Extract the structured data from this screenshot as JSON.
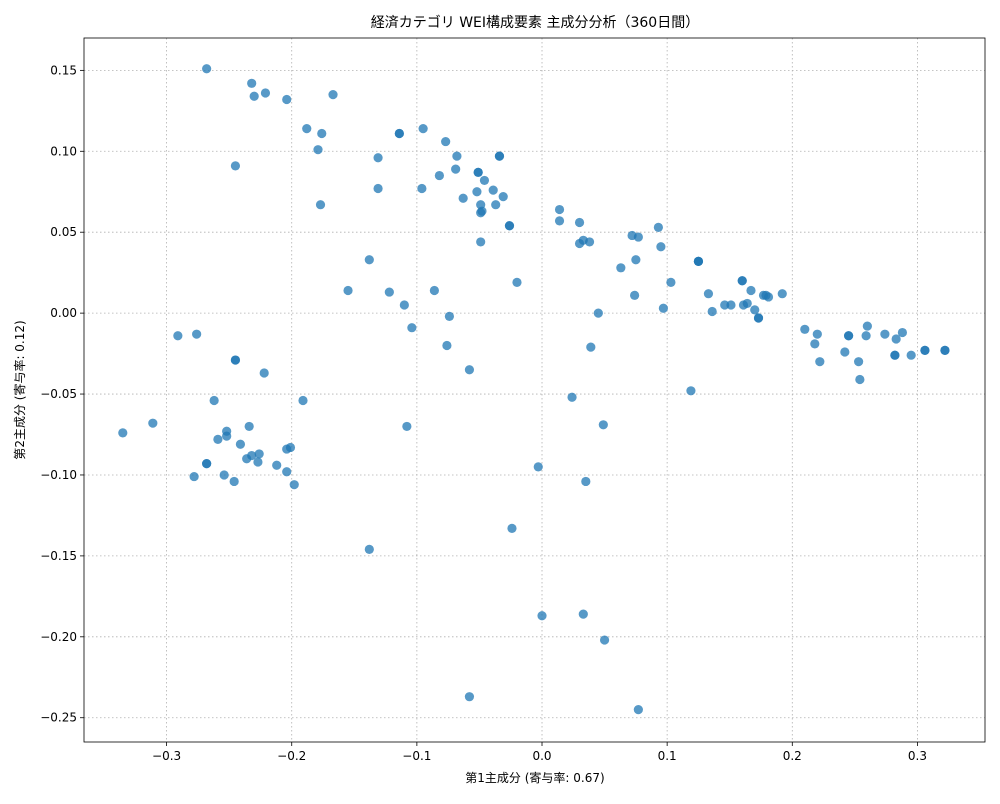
{
  "chart_data": {
    "type": "scatter",
    "title": "経済カテゴリ WEI構成要素 主成分分析（360日間）",
    "xlabel": "第1主成分 (寄与率: 0.67)",
    "ylabel": "第2主成分 (寄与率: 0.12)",
    "xlim": [
      -0.366,
      0.354
    ],
    "ylim": [
      -0.265,
      0.17
    ],
    "xticks": [
      -0.3,
      -0.2,
      -0.1,
      0.0,
      0.1,
      0.2,
      0.3
    ],
    "xtick_labels": [
      "−0.3",
      "−0.2",
      "−0.1",
      "0.0",
      "0.1",
      "0.2",
      "0.3"
    ],
    "yticks": [
      0.15,
      0.1,
      0.05,
      0.0,
      -0.05,
      -0.1,
      -0.15,
      -0.2,
      -0.25
    ],
    "ytick_labels": [
      "0.15",
      "0.10",
      "0.05",
      "0.00",
      "−0.05",
      "−0.10",
      "−0.15",
      "−0.20",
      "−0.25"
    ],
    "grid": true,
    "marker_color": "#1f77b4",
    "marker_alpha": 0.75,
    "points": [
      [
        -0.268,
        0.151
      ],
      [
        -0.232,
        0.142
      ],
      [
        -0.23,
        0.134
      ],
      [
        -0.221,
        0.136
      ],
      [
        -0.204,
        0.132
      ],
      [
        -0.167,
        0.135
      ],
      [
        -0.188,
        0.114
      ],
      [
        -0.176,
        0.111
      ],
      [
        -0.179,
        0.101
      ],
      [
        -0.245,
        0.091
      ],
      [
        -0.177,
        0.067
      ],
      [
        -0.114,
        0.111
      ],
      [
        -0.114,
        0.111
      ],
      [
        -0.095,
        0.114
      ],
      [
        -0.077,
        0.106
      ],
      [
        -0.068,
        0.097
      ],
      [
        -0.131,
        0.096
      ],
      [
        -0.131,
        0.077
      ],
      [
        -0.096,
        0.077
      ],
      [
        -0.082,
        0.085
      ],
      [
        -0.069,
        0.089
      ],
      [
        -0.051,
        0.087
      ],
      [
        -0.051,
        0.087
      ],
      [
        -0.046,
        0.082
      ],
      [
        -0.034,
        0.097
      ],
      [
        -0.034,
        0.097
      ],
      [
        -0.052,
        0.075
      ],
      [
        -0.039,
        0.076
      ],
      [
        -0.063,
        0.071
      ],
      [
        -0.031,
        0.072
      ],
      [
        -0.049,
        0.067
      ],
      [
        -0.049,
        0.062
      ],
      [
        -0.048,
        0.063
      ],
      [
        -0.037,
        0.067
      ],
      [
        -0.026,
        0.054
      ],
      [
        -0.026,
        0.054
      ],
      [
        -0.049,
        0.044
      ],
      [
        0.014,
        0.064
      ],
      [
        0.014,
        0.057
      ],
      [
        0.03,
        0.056
      ],
      [
        0.03,
        0.043
      ],
      [
        0.033,
        0.045
      ],
      [
        0.038,
        0.044
      ],
      [
        0.072,
        0.048
      ],
      [
        0.077,
        0.047
      ],
      [
        0.093,
        0.053
      ],
      [
        0.095,
        0.041
      ],
      [
        0.063,
        0.028
      ],
      [
        0.075,
        0.033
      ],
      [
        0.074,
        0.011
      ],
      [
        0.103,
        0.019
      ],
      [
        0.097,
        0.003
      ],
      [
        0.125,
        0.032
      ],
      [
        0.125,
        0.032
      ],
      [
        0.125,
        0.032
      ],
      [
        0.133,
        0.012
      ],
      [
        0.136,
        0.001
      ],
      [
        0.146,
        0.005
      ],
      [
        0.151,
        0.005
      ],
      [
        0.16,
        0.02
      ],
      [
        0.16,
        0.02
      ],
      [
        0.167,
        0.014
      ],
      [
        0.177,
        0.011
      ],
      [
        0.179,
        0.011
      ],
      [
        0.181,
        0.01
      ],
      [
        0.192,
        0.012
      ],
      [
        0.161,
        0.005
      ],
      [
        0.164,
        0.006
      ],
      [
        0.17,
        0.002
      ],
      [
        0.173,
        -0.003
      ],
      [
        0.173,
        -0.003
      ],
      [
        -0.138,
        0.033
      ],
      [
        -0.155,
        0.014
      ],
      [
        -0.122,
        0.013
      ],
      [
        -0.11,
        0.005
      ],
      [
        -0.086,
        0.014
      ],
      [
        -0.104,
        -0.009
      ],
      [
        -0.074,
        -0.002
      ],
      [
        -0.076,
        -0.02
      ],
      [
        -0.02,
        0.019
      ],
      [
        0.045,
        0.0
      ],
      [
        0.039,
        -0.021
      ],
      [
        -0.058,
        -0.035
      ],
      [
        -0.108,
        -0.07
      ],
      [
        0.024,
        -0.052
      ],
      [
        0.049,
        -0.069
      ],
      [
        0.119,
        -0.048
      ],
      [
        -0.003,
        -0.095
      ],
      [
        0.035,
        -0.104
      ],
      [
        -0.024,
        -0.133
      ],
      [
        -0.138,
        -0.146
      ],
      [
        0.0,
        -0.187
      ],
      [
        0.033,
        -0.186
      ],
      [
        0.05,
        -0.202
      ],
      [
        -0.058,
        -0.237
      ],
      [
        0.077,
        -0.245
      ],
      [
        0.21,
        -0.01
      ],
      [
        0.22,
        -0.013
      ],
      [
        0.218,
        -0.019
      ],
      [
        0.222,
        -0.03
      ],
      [
        0.242,
        -0.024
      ],
      [
        0.245,
        -0.014
      ],
      [
        0.245,
        -0.014
      ],
      [
        0.253,
        -0.03
      ],
      [
        0.254,
        -0.041
      ],
      [
        0.259,
        -0.014
      ],
      [
        0.26,
        -0.008
      ],
      [
        0.274,
        -0.013
      ],
      [
        0.282,
        -0.026
      ],
      [
        0.282,
        -0.026
      ],
      [
        0.283,
        -0.016
      ],
      [
        0.288,
        -0.012
      ],
      [
        0.295,
        -0.026
      ],
      [
        0.306,
        -0.023
      ],
      [
        0.306,
        -0.023
      ],
      [
        0.322,
        -0.023
      ],
      [
        0.322,
        -0.023
      ],
      [
        -0.291,
        -0.014
      ],
      [
        -0.276,
        -0.013
      ],
      [
        -0.245,
        -0.029
      ],
      [
        -0.245,
        -0.029
      ],
      [
        -0.222,
        -0.037
      ],
      [
        -0.191,
        -0.054
      ],
      [
        -0.262,
        -0.054
      ],
      [
        -0.335,
        -0.074
      ],
      [
        -0.311,
        -0.068
      ],
      [
        -0.252,
        -0.073
      ],
      [
        -0.252,
        -0.076
      ],
      [
        -0.259,
        -0.078
      ],
      [
        -0.241,
        -0.081
      ],
      [
        -0.234,
        -0.07
      ],
      [
        -0.232,
        -0.088
      ],
      [
        -0.236,
        -0.09
      ],
      [
        -0.226,
        -0.087
      ],
      [
        -0.227,
        -0.092
      ],
      [
        -0.268,
        -0.093
      ],
      [
        -0.268,
        -0.093
      ],
      [
        -0.212,
        -0.094
      ],
      [
        -0.204,
        -0.084
      ],
      [
        -0.201,
        -0.083
      ],
      [
        -0.204,
        -0.098
      ],
      [
        -0.198,
        -0.106
      ],
      [
        -0.278,
        -0.101
      ],
      [
        -0.254,
        -0.1
      ],
      [
        -0.246,
        -0.104
      ]
    ]
  }
}
